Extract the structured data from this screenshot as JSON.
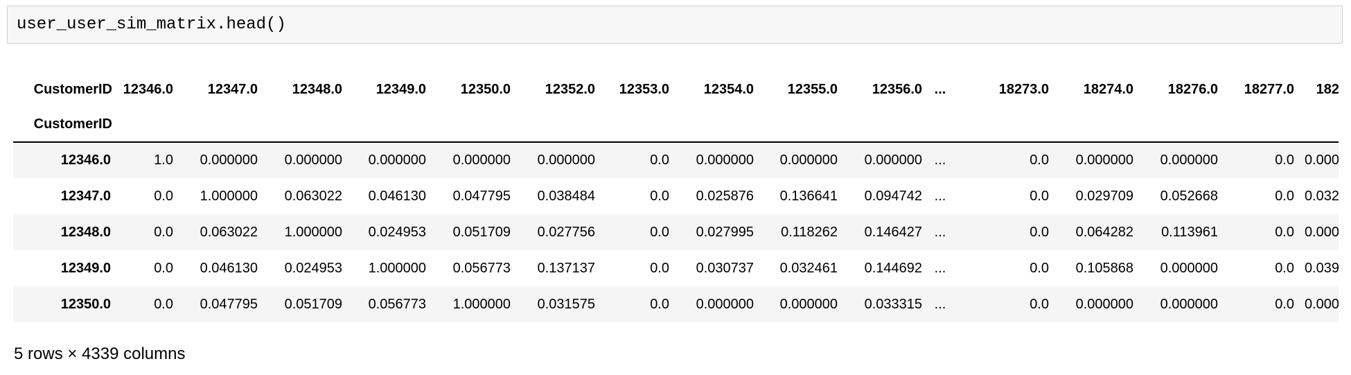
{
  "code_cell": {
    "source": "user_user_sim_matrix.head()"
  },
  "dataframe": {
    "index_name": "CustomerID",
    "columns_name": "CustomerID",
    "columns": [
      "12346.0",
      "12347.0",
      "12348.0",
      "12349.0",
      "12350.0",
      "12352.0",
      "12353.0",
      "12354.0",
      "12355.0",
      "12356.0",
      "...",
      "18273.0",
      "18274.0",
      "18276.0",
      "18277.0",
      "182"
    ],
    "rows": [
      {
        "index": "12346.0",
        "cells": [
          "1.0",
          "0.000000",
          "0.000000",
          "0.000000",
          "0.000000",
          "0.000000",
          "0.0",
          "0.000000",
          "0.000000",
          "0.000000",
          "...",
          "0.0",
          "0.000000",
          "0.000000",
          "0.0",
          "0.000"
        ]
      },
      {
        "index": "12347.0",
        "cells": [
          "0.0",
          "1.000000",
          "0.063022",
          "0.046130",
          "0.047795",
          "0.038484",
          "0.0",
          "0.025876",
          "0.136641",
          "0.094742",
          "...",
          "0.0",
          "0.029709",
          "0.052668",
          "0.0",
          "0.032"
        ]
      },
      {
        "index": "12348.0",
        "cells": [
          "0.0",
          "0.063022",
          "1.000000",
          "0.024953",
          "0.051709",
          "0.027756",
          "0.0",
          "0.027995",
          "0.118262",
          "0.146427",
          "...",
          "0.0",
          "0.064282",
          "0.113961",
          "0.0",
          "0.000"
        ]
      },
      {
        "index": "12349.0",
        "cells": [
          "0.0",
          "0.046130",
          "0.024953",
          "1.000000",
          "0.056773",
          "0.137137",
          "0.0",
          "0.030737",
          "0.032461",
          "0.144692",
          "...",
          "0.0",
          "0.105868",
          "0.000000",
          "0.0",
          "0.039"
        ]
      },
      {
        "index": "12350.0",
        "cells": [
          "0.0",
          "0.047795",
          "0.051709",
          "0.056773",
          "1.000000",
          "0.031575",
          "0.0",
          "0.000000",
          "0.000000",
          "0.033315",
          "...",
          "0.0",
          "0.000000",
          "0.000000",
          "0.0",
          "0.000"
        ]
      }
    ],
    "shape_text": "5 rows × 4339 columns"
  }
}
